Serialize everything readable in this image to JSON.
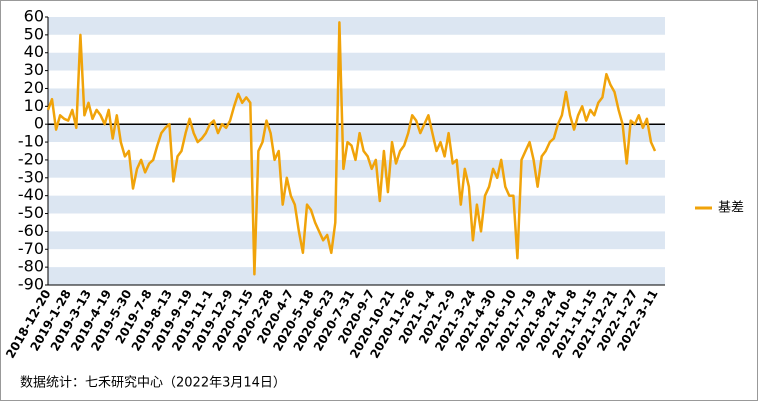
{
  "chart_data": {
    "type": "line",
    "categories": [
      "2018-12-20",
      null,
      null,
      null,
      null,
      "2019-1-28",
      null,
      null,
      null,
      null,
      "2019-3-13",
      null,
      null,
      null,
      null,
      "2019-4-19",
      null,
      null,
      null,
      null,
      "2019-5-30",
      null,
      null,
      null,
      null,
      "2019-7-8",
      null,
      null,
      null,
      null,
      "2019-8-13",
      null,
      null,
      null,
      null,
      "2019-9-19",
      null,
      null,
      null,
      null,
      "2019-11-1",
      null,
      null,
      null,
      null,
      "2019-12-9",
      null,
      null,
      null,
      null,
      "2020-1-15",
      null,
      null,
      null,
      null,
      "2020-2-28",
      null,
      null,
      null,
      null,
      "2020-4-7",
      null,
      null,
      null,
      null,
      "2020-5-18",
      null,
      null,
      null,
      null,
      "2020-6-23",
      null,
      null,
      null,
      null,
      "2020-7-31",
      null,
      null,
      null,
      null,
      "2020-9-7",
      null,
      null,
      null,
      null,
      "2020-10-21",
      null,
      null,
      null,
      null,
      "2020-11-26",
      null,
      null,
      null,
      null,
      "2021-1-4",
      null,
      null,
      null,
      null,
      "2021-2-9",
      null,
      null,
      null,
      null,
      "2021-3-24",
      null,
      null,
      null,
      null,
      "2021-4-30",
      null,
      null,
      null,
      null,
      "2021-6-10",
      null,
      null,
      null,
      null,
      "2021-7-19",
      null,
      null,
      null,
      null,
      "2021-8-24",
      null,
      null,
      null,
      null,
      "2021-10-8",
      null,
      null,
      null,
      null,
      "2021-11-15",
      null,
      null,
      null,
      null,
      "2021-12-21",
      null,
      null,
      null,
      null,
      "2022-1-27",
      null,
      null,
      null,
      null,
      "2022-3-11"
    ],
    "series": [
      {
        "name": "基差",
        "color": "#f0a30a",
        "values": [
          8,
          14,
          -3,
          5,
          3,
          2,
          8,
          -2,
          50,
          5,
          12,
          3,
          8,
          5,
          0,
          8,
          -8,
          5,
          -10,
          -18,
          -15,
          -36,
          -25,
          -20,
          -27,
          -22,
          -20,
          -12,
          -5,
          -2,
          0,
          -32,
          -18,
          -15,
          -5,
          3,
          -5,
          -10,
          -8,
          -5,
          0,
          2,
          -5,
          0,
          -2,
          2,
          10,
          17,
          12,
          15,
          12,
          -84,
          -15,
          -10,
          2,
          -5,
          -20,
          -15,
          -45,
          -30,
          -40,
          -45,
          -60,
          -72,
          -45,
          -48,
          -55,
          -60,
          -65,
          -62,
          -72,
          -55,
          57,
          -25,
          -10,
          -12,
          -20,
          -5,
          -15,
          -18,
          -25,
          -20,
          -43,
          -15,
          -38,
          -10,
          -22,
          -15,
          -12,
          -5,
          5,
          2,
          -5,
          0,
          5,
          -5,
          -15,
          -10,
          -18,
          -5,
          -22,
          -20,
          -45,
          -25,
          -35,
          -65,
          -45,
          -60,
          -40,
          -35,
          -25,
          -30,
          -20,
          -35,
          -40,
          -40,
          -75,
          -20,
          -15,
          -10,
          -20,
          -35,
          -18,
          -15,
          -10,
          -8,
          0,
          5,
          18,
          5,
          -3,
          5,
          10,
          2,
          8,
          5,
          12,
          15,
          28,
          22,
          18,
          8,
          0,
          -22,
          2,
          0,
          5,
          -2,
          3,
          -10,
          -15
        ]
      }
    ],
    "ylim": [
      -90,
      60
    ],
    "yticks": [
      -90,
      -80,
      -70,
      -60,
      -50,
      -40,
      -30,
      -20,
      -10,
      0,
      10,
      20,
      30,
      40,
      50,
      60
    ],
    "bands": true,
    "legend": "right",
    "footnote": "数据统计：七禾研究中心（2022年3月14日）"
  }
}
